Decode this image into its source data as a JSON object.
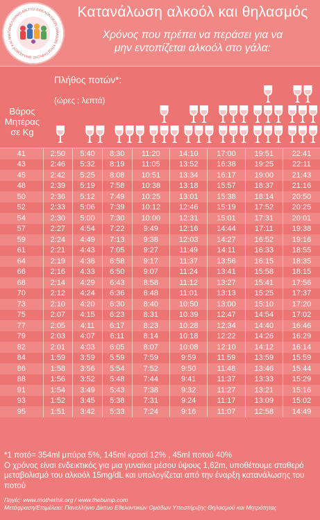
{
  "header": {
    "title": "Κατανάλωση αλκοόλ και θηλασμός",
    "subtitle_line1": "Χρόνος που πρέπει να περάσει για να",
    "subtitle_line2": "μην εντοπίζεται αλκοόλ στο γάλα:",
    "logo_text": "ΠΑΝΕΛΛΗΝΙΟ ΔΙΚΤΥΟ ΕΘΕΛΟΝΤΙΚΩΝ ΟΜΑΔΩΝ ΥΠΟΣΤΗΡΙΞΗΣ ΘΗΛΑΣΜΟΥ ΚΑΙ ΜΗΤΡΟΤΗΤΑΣ"
  },
  "table_header": {
    "drinks_label": "Πλήθος ποτών*:",
    "hours_label": "(ώρες : λεπτά)",
    "weight_line1": "Βάρος",
    "weight_line2": "Μητέρας",
    "weight_line3": "σε Kg",
    "drink_counts": [
      1,
      2,
      3,
      4,
      5,
      6,
      7,
      8
    ]
  },
  "rows": [
    {
      "w": "41",
      "v": [
        "2:50",
        "5:40",
        "8:30",
        "11:20",
        "14:10",
        "17:00",
        "19:51",
        "22:41"
      ]
    },
    {
      "w": "43",
      "v": [
        "2:46",
        "5:32",
        "8:19",
        "11:05",
        "13:52",
        "16:38",
        "19:25",
        "22:11"
      ]
    },
    {
      "w": "45",
      "v": [
        "2:42",
        "5:25",
        "8:08",
        "10:51",
        "13:34",
        "16:17",
        "19:00",
        "21:43"
      ]
    },
    {
      "w": "48",
      "v": [
        "2:39",
        "5:19",
        "7:58",
        "10:38",
        "13:18",
        "15:57",
        "18:37",
        "21:16"
      ]
    },
    {
      "w": "50",
      "v": [
        "2:36",
        "5:12",
        "7:49",
        "10:25",
        "13:01",
        "15:38",
        "18:14",
        "20:50"
      ]
    },
    {
      "w": "52",
      "v": [
        "2:33",
        "5:06",
        "7:39",
        "10:12",
        "12:46",
        "15:19",
        "17:52",
        "20:25"
      ]
    },
    {
      "w": "54",
      "v": [
        "2:30",
        "5:00",
        "7:30",
        "10:00",
        "12:31",
        "15:01",
        "17:31",
        "20:01"
      ]
    },
    {
      "w": "57",
      "v": [
        "2:27",
        "4:54",
        "7:22",
        "9:49",
        "12:16",
        "14:44",
        "17:11",
        "19:38"
      ]
    },
    {
      "w": "59",
      "v": [
        "2:24",
        "4:49",
        "7:13",
        "9:38",
        "12:03",
        "14:27",
        "16:52",
        "19:16"
      ]
    },
    {
      "w": "61",
      "v": [
        "2:21",
        "4:43",
        "7:05",
        "9:27",
        "11:49",
        "14:11",
        "16:33",
        "18:55"
      ]
    },
    {
      "w": "64",
      "v": [
        "2:19",
        "4:38",
        "6:58",
        "9:17",
        "11:37",
        "13:56",
        "16:15",
        "18:35"
      ]
    },
    {
      "w": "66",
      "v": [
        "2:16",
        "4:33",
        "6:50",
        "9:07",
        "11:24",
        "13:41",
        "15:58",
        "18:15"
      ]
    },
    {
      "w": "68",
      "v": [
        "2:14",
        "4:29",
        "6:43",
        "8:58",
        "11:12",
        "13:27",
        "15:41",
        "17:56"
      ]
    },
    {
      "w": "70",
      "v": [
        "2:12",
        "4:24",
        "6:36",
        "8:48",
        "11:01",
        "13:13",
        "15:25",
        "17:37"
      ]
    },
    {
      "w": "73",
      "v": [
        "2:10",
        "4:20",
        "6:30",
        "8:40",
        "10:50",
        "13:00",
        "15:10",
        "17:20"
      ]
    },
    {
      "w": "75",
      "v": [
        "2:07",
        "4:15",
        "6:23",
        "8:31",
        "10:39",
        "12:47",
        "14:54",
        "17:02"
      ]
    },
    {
      "w": "77",
      "v": [
        "2:05",
        "4:11",
        "6:17",
        "8:23",
        "10:28",
        "12:34",
        "14:40",
        "16:46"
      ]
    },
    {
      "w": "79",
      "v": [
        "2:03",
        "4:07",
        "6:11",
        "8:14",
        "10:18",
        "12:22",
        "14:26",
        "16:29"
      ]
    },
    {
      "w": "82",
      "v": [
        "2:01",
        "4:03",
        "6:05",
        "8:07",
        "10:08",
        "12:10",
        "14:12",
        "16:14"
      ]
    },
    {
      "w": "84",
      "v": [
        "1:59",
        "3:59",
        "5:59",
        "7:59",
        "9:59",
        "11:59",
        "13:59",
        "15:59"
      ]
    },
    {
      "w": "86",
      "v": [
        "1:58",
        "3:56",
        "5:54",
        "7:52",
        "9:50",
        "11:48",
        "13:46",
        "15:44"
      ]
    },
    {
      "w": "88",
      "v": [
        "1:56",
        "3:52",
        "5:48",
        "7:44",
        "9:41",
        "11:37",
        "13:33",
        "15:29"
      ]
    },
    {
      "w": "91",
      "v": [
        "1:54",
        "3:49",
        "5:43",
        "7:38",
        "9:32",
        "11:27",
        "13:21",
        "15:16"
      ]
    },
    {
      "w": "93",
      "v": [
        "1:52",
        "3:45",
        "5:38",
        "7:31",
        "9:24",
        "11:17",
        "13:09",
        "15:02"
      ]
    },
    {
      "w": "95",
      "v": [
        "1:51",
        "3:42",
        "5:33",
        "7:24",
        "9:16",
        "11:07",
        "12:58",
        "14:49"
      ]
    }
  ],
  "footnote": {
    "line1": "*1 ποτό= 354ml μπύρα 5%, 145ml κρασί 12% , 45ml ποτού 40%",
    "line2": "Ο χρόνος είναι ενδεικτικός για μια γυναίκα μέσου ύψους 1,62m, υποθέτουμε σταθερό μεταβολισμό του αλκοόλ 15mg/dL και υπολογίζεται από την έναρξη κατανάλωσης του ποτού"
  },
  "sources": {
    "line1": "Πηγές: www.motherisk.org / www.thebump.com",
    "line2": "Μετάφραση/Επιμέλεια: Πανελλήνιο Δίκτυο Εθελοντικών Ομάδων Υποστήριξης Θηλασμού και Μητρότητας"
  },
  "colors": {
    "background": "#ee7b7a",
    "row_light": "#f08886",
    "row_dark": "#ec7472",
    "text": "#ffffff"
  },
  "icons": [
    "logo-badge",
    "wine-glass-icon"
  ]
}
